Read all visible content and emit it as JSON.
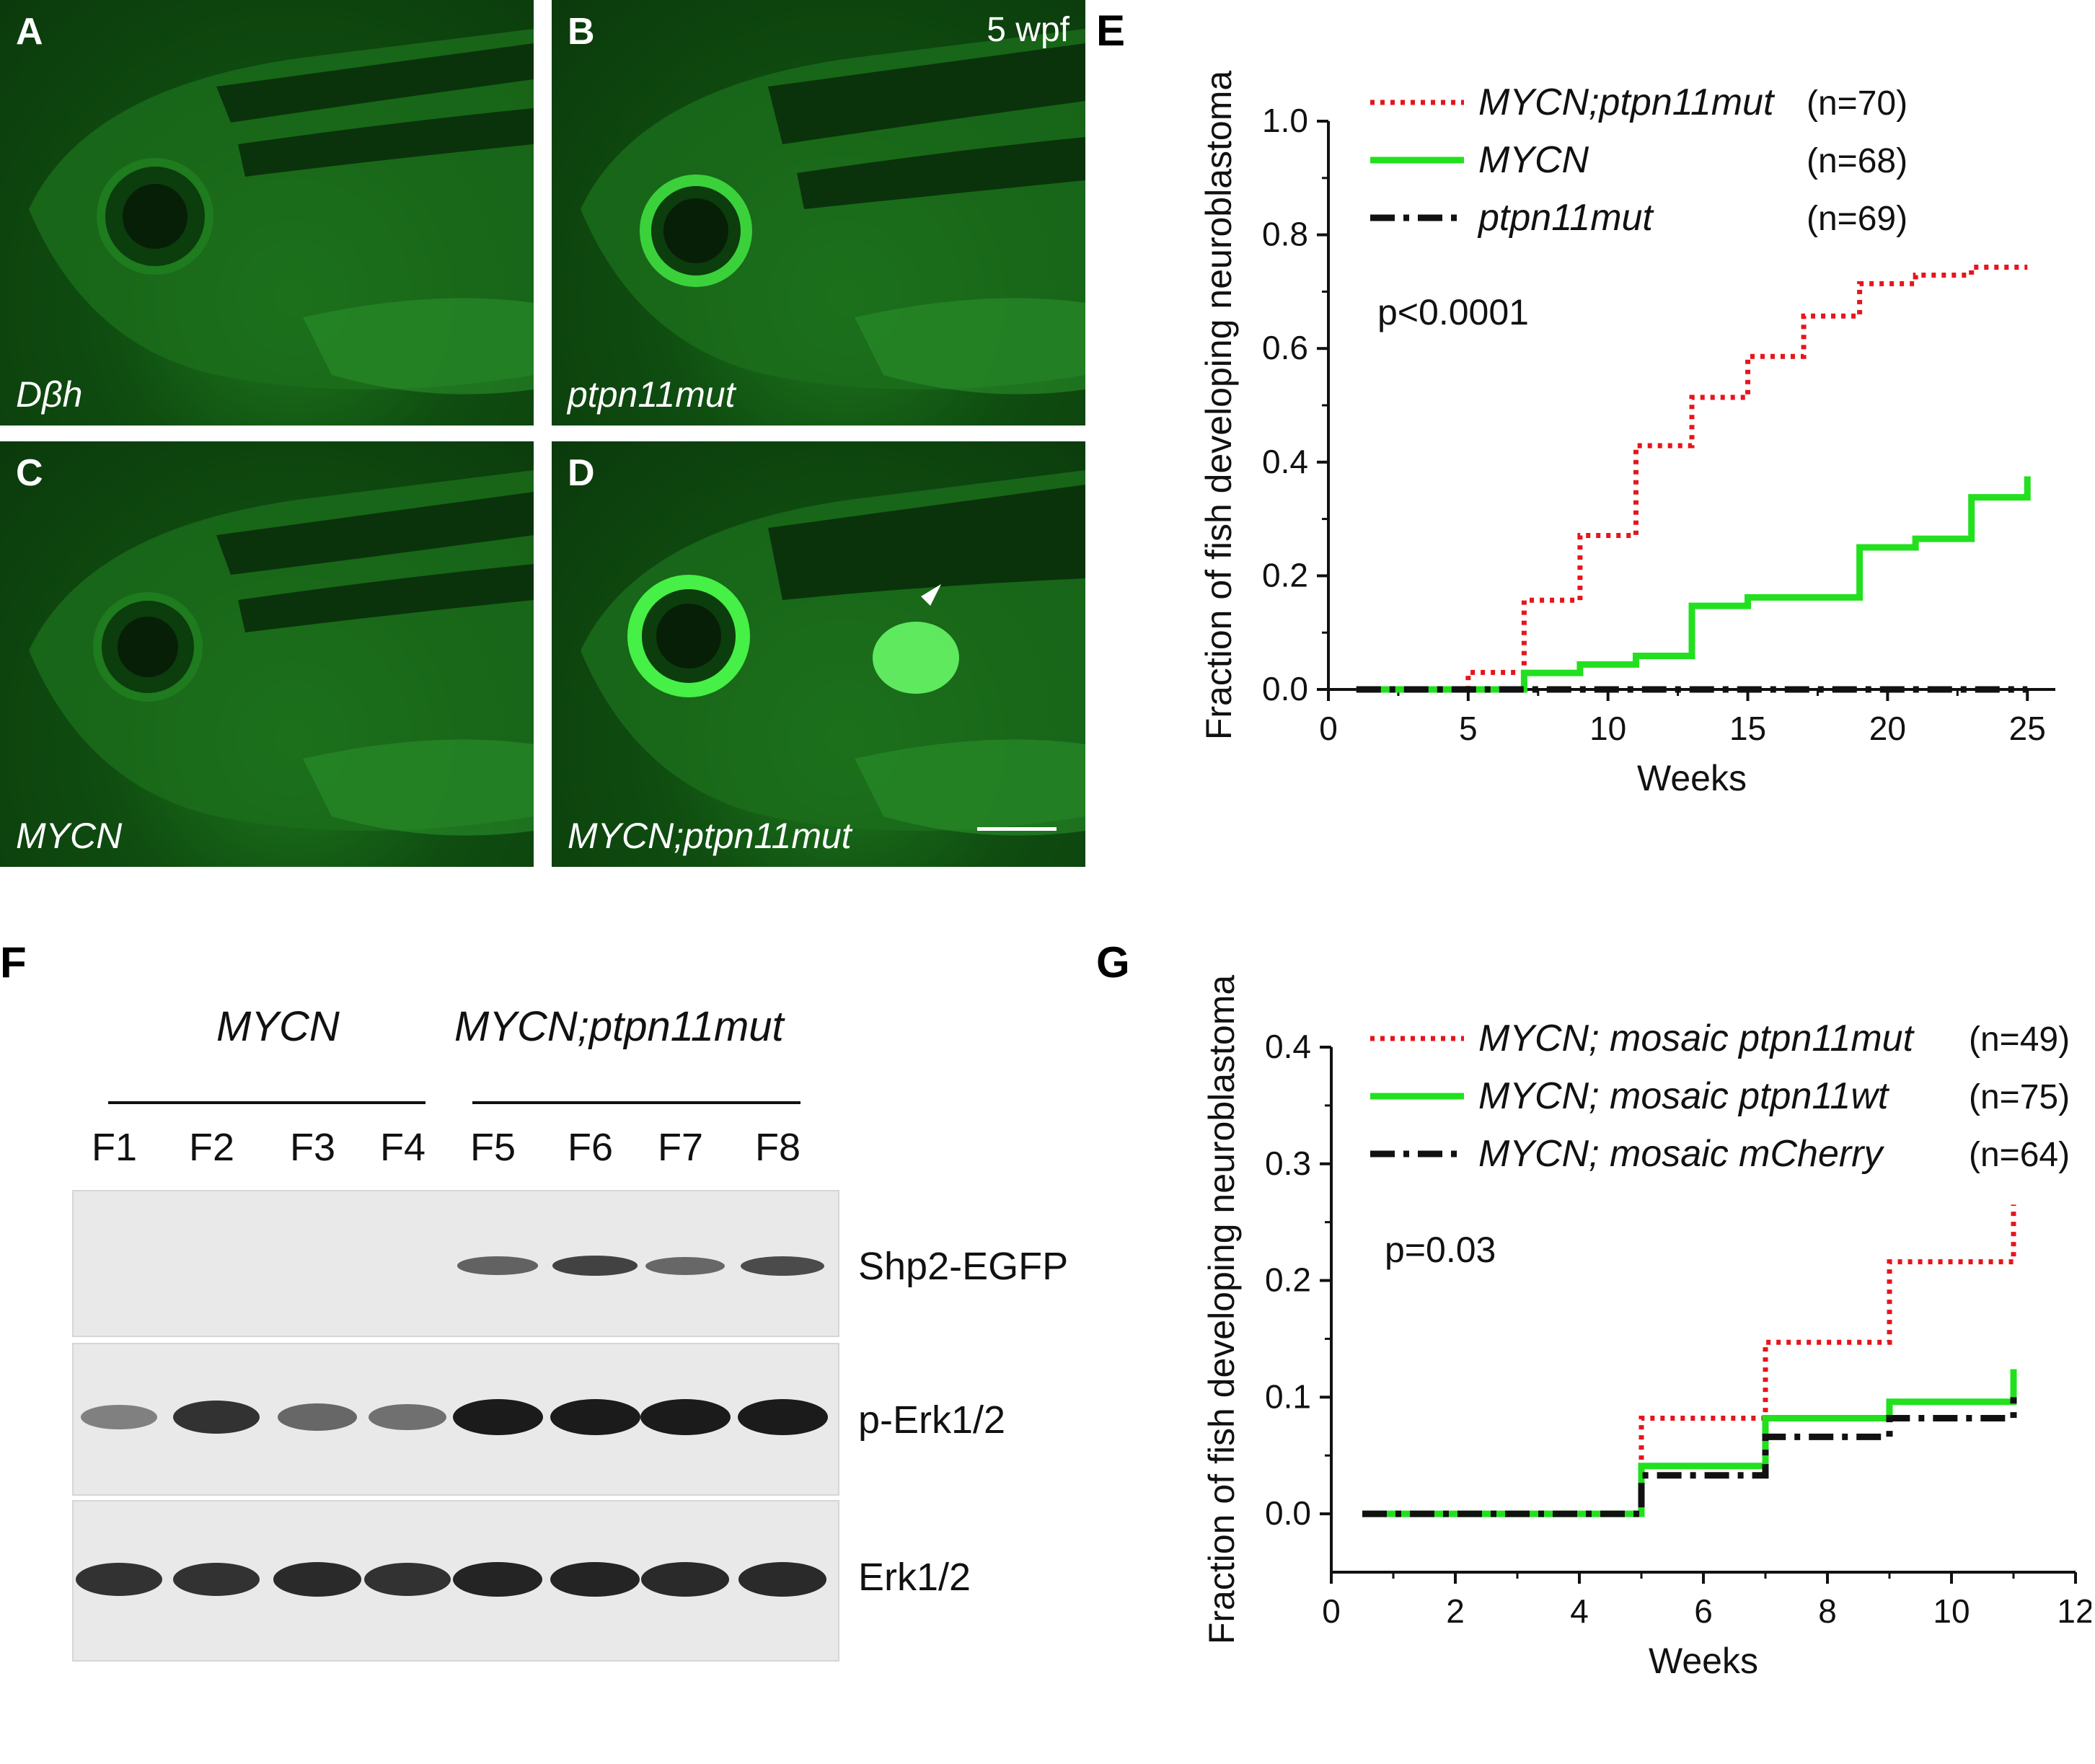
{
  "panels": {
    "A": {
      "letter": "A",
      "label": "Dβh"
    },
    "B": {
      "letter": "B",
      "label": "ptpn11mut",
      "timepoint": "5 wpf"
    },
    "C": {
      "letter": "C",
      "label": "MYCN"
    },
    "D": {
      "letter": "D",
      "label": "MYCN;ptpn11mut"
    }
  },
  "panel_E": {
    "letter": "E"
  },
  "panel_F": {
    "letter": "F",
    "group1": "MYCN",
    "group2": "MYCN;ptpn11mut",
    "lanes": [
      "F1",
      "F2",
      "F3",
      "F4",
      "F5",
      "F6",
      "F7",
      "F8"
    ],
    "rows": [
      "Shp2-EGFP",
      "p-Erk1/2",
      "Erk1/2"
    ],
    "intensities": {
      "Shp2-EGFP": [
        0,
        0,
        0,
        0,
        0.55,
        0.75,
        0.5,
        0.7
      ],
      "p-Erk1/2": [
        0.35,
        0.85,
        0.5,
        0.45,
        1.0,
        1.0,
        1.0,
        1.0
      ],
      "Erk1/2": [
        0.85,
        0.85,
        0.9,
        0.85,
        0.95,
        0.95,
        0.9,
        0.9
      ]
    }
  },
  "panel_G": {
    "letter": "G"
  },
  "chart_data": [
    {
      "id": "E",
      "type": "line",
      "step": true,
      "xlabel": "Weeks",
      "ylabel": "Fraction of fish developing neuroblastoma",
      "xlim": [
        0,
        26
      ],
      "ylim": [
        0,
        1.0
      ],
      "xticks": [
        0,
        5,
        10,
        15,
        20,
        25
      ],
      "yticks": [
        0.0,
        0.2,
        0.4,
        0.6,
        0.8,
        1.0
      ],
      "annotation": "p<0.0001",
      "legend_position": "top",
      "series": [
        {
          "name": "MYCN;ptpn11mut",
          "n_label": "(n=70)",
          "color": "#e8141b",
          "style": "dotted",
          "x": [
            1,
            5,
            7,
            9,
            11,
            13,
            15,
            17,
            19,
            21,
            23,
            25
          ],
          "y": [
            0,
            0.03,
            0.157,
            0.271,
            0.429,
            0.514,
            0.586,
            0.657,
            0.714,
            0.729,
            0.743,
            0.743
          ]
        },
        {
          "name": "MYCN",
          "n_label": "(n=68)",
          "color": "#22e01e",
          "style": "solid",
          "x": [
            1,
            7,
            9,
            11,
            13,
            15,
            19,
            21,
            23,
            25
          ],
          "y": [
            0,
            0.029,
            0.044,
            0.059,
            0.147,
            0.162,
            0.25,
            0.265,
            0.338,
            0.375
          ]
        },
        {
          "name": "ptpn11mut",
          "n_label": "(n=69)",
          "color": "#111111",
          "style": "dashdot",
          "x": [
            1,
            25
          ],
          "y": [
            0,
            0
          ]
        }
      ]
    },
    {
      "id": "G",
      "type": "line",
      "step": true,
      "xlabel": "Weeks",
      "ylabel": "Fraction of fish developing neuroblastoma",
      "xlim": [
        0,
        12
      ],
      "ylim": [
        -0.05,
        0.4
      ],
      "xticks": [
        0,
        2,
        4,
        6,
        8,
        10,
        12
      ],
      "yticks": [
        0.0,
        0.1,
        0.2,
        0.3,
        0.4
      ],
      "annotation": "p=0.03",
      "legend_position": "top",
      "series": [
        {
          "name": "MYCN; mosaic ptpn11mut",
          "n_label": "(n=49)",
          "color": "#e8141b",
          "style": "dotted",
          "x": [
            0.5,
            5,
            7,
            9,
            11
          ],
          "y": [
            0,
            0.082,
            0.147,
            0.216,
            0.265
          ]
        },
        {
          "name": "MYCN; mosaic ptpn11wt",
          "n_label": "(n=75)",
          "color": "#22e01e",
          "style": "solid",
          "x": [
            0.5,
            5,
            7,
            9,
            11
          ],
          "y": [
            0,
            0.041,
            0.082,
            0.096,
            0.124
          ]
        },
        {
          "name": "MYCN; mosaic mCherry",
          "n_label": "(n=64)",
          "color": "#111111",
          "style": "dashdot",
          "x": [
            0.5,
            5,
            7,
            9,
            11
          ],
          "y": [
            0,
            0.033,
            0.066,
            0.082,
            0.1
          ]
        }
      ]
    }
  ]
}
